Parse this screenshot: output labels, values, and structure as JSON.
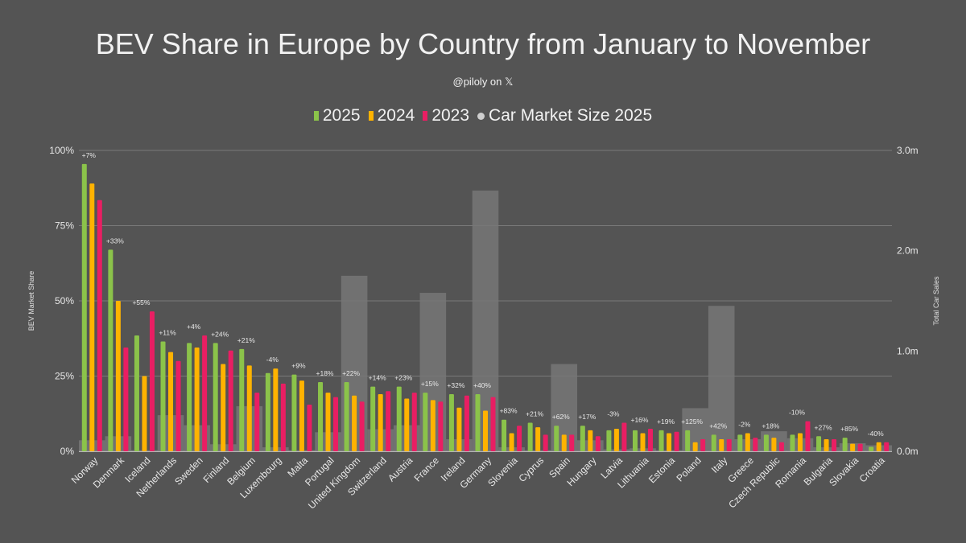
{
  "chart_data": {
    "type": "bar",
    "title": "BEV Share in Europe by Country from January to November",
    "subtitle": "@piloly on 𝕏",
    "ylabel": "BEV Market Share",
    "y2label": "Total Car Sales",
    "ylim": [
      0,
      100
    ],
    "y2lim": [
      0,
      3.0
    ],
    "yticks": [
      "0%",
      "25%",
      "50%",
      "75%",
      "100%"
    ],
    "y2ticks": [
      "0.0m",
      "1.0m",
      "2.0m",
      "3.0m"
    ],
    "legend_position": "top",
    "grid": true,
    "categories": [
      "Norway",
      "Denmark",
      "Iceland",
      "Netherlands",
      "Sweden",
      "Finland",
      "Belgium",
      "Luxembourg",
      "Malta",
      "Portugal",
      "United Kingdom",
      "Switzerland",
      "Austria",
      "France",
      "Ireland",
      "Germany",
      "Slovenia",
      "Cyprus",
      "Spain",
      "Hungary",
      "Latvia",
      "Lithuania",
      "Estonia",
      "Poland",
      "Italy",
      "Greece",
      "Czech Republic",
      "Romania",
      "Bulgaria",
      "Slovakia",
      "Croatia"
    ],
    "series": [
      {
        "name": "2025",
        "color": "#8bc34a",
        "values": [
          95.5,
          67,
          38.5,
          36.5,
          36,
          36,
          34,
          26,
          25.5,
          23,
          23,
          21.5,
          21.5,
          19.5,
          19,
          19,
          10.5,
          9.5,
          8.5,
          8.5,
          7,
          7,
          7,
          7,
          5.5,
          5.5,
          5.5,
          5.5,
          5,
          4.5,
          1.5
        ]
      },
      {
        "name": "2024",
        "color": "#ffb300",
        "values": [
          89,
          50,
          25,
          33,
          34.5,
          29,
          28.5,
          27.5,
          23.5,
          19.5,
          18.5,
          19,
          17.5,
          17,
          14.5,
          13.5,
          6,
          8,
          5.5,
          7,
          7.5,
          6,
          6,
          3,
          4,
          6,
          4.5,
          6,
          4,
          2.5,
          3
        ]
      },
      {
        "name": "2023",
        "color": "#e91e63",
        "values": [
          83.5,
          34.5,
          46.5,
          30,
          38.5,
          33.5,
          19.5,
          22.5,
          15.5,
          18,
          16.5,
          20,
          19.5,
          16.5,
          18.5,
          18,
          8.5,
          5.5,
          5.5,
          5,
          9.5,
          7.5,
          6.5,
          4,
          4,
          4.5,
          3,
          10,
          4,
          2.5,
          3
        ]
      },
      {
        "name": "Car Market Size 2025",
        "color": "#777777",
        "axis": "right",
        "unit": "m",
        "values": [
          0.11,
          0.15,
          0.01,
          0.36,
          0.26,
          0.07,
          0.45,
          0.04,
          0.01,
          0.19,
          1.75,
          0.22,
          0.26,
          1.58,
          0.12,
          2.6,
          0.04,
          0.01,
          0.87,
          0.11,
          0.02,
          0.03,
          0.01,
          0.43,
          1.45,
          0.12,
          0.2,
          0.13,
          0.04,
          0.08,
          0.06
        ]
      }
    ],
    "change_labels": [
      "+7%",
      "+33%",
      "+55%",
      "+11%",
      "+4%",
      "+24%",
      "+21%",
      "-4%",
      "+9%",
      "+18%",
      "+22%",
      "+14%",
      "+23%",
      "+15%",
      "+32%",
      "+40%",
      "+83%",
      "+21%",
      "+62%",
      "+17%",
      "-3%",
      "+16%",
      "+19%",
      "+125%",
      "+42%",
      "-2%",
      "+18%",
      "-10%",
      "+27%",
      "+85%",
      "-40%"
    ]
  }
}
